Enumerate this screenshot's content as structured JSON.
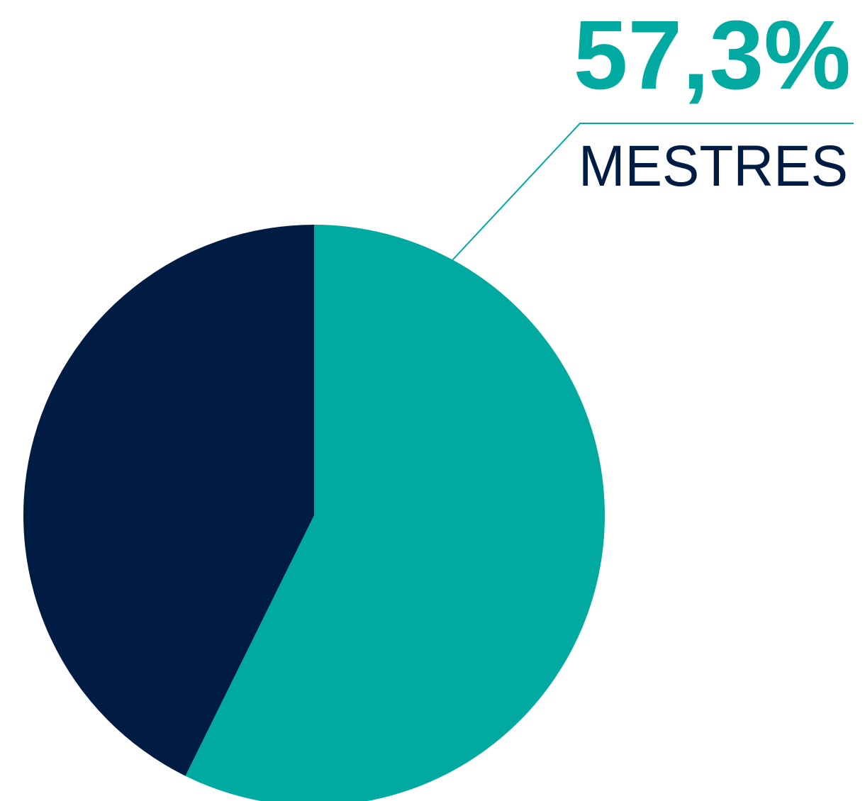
{
  "chart_data": {
    "type": "pie",
    "categories": [
      "MESTRES",
      null
    ],
    "values": [
      57.3,
      42.7
    ],
    "value_labels": [
      "57,3%",
      null
    ],
    "colors": [
      "#00aaa0",
      "#001c43"
    ]
  }
}
